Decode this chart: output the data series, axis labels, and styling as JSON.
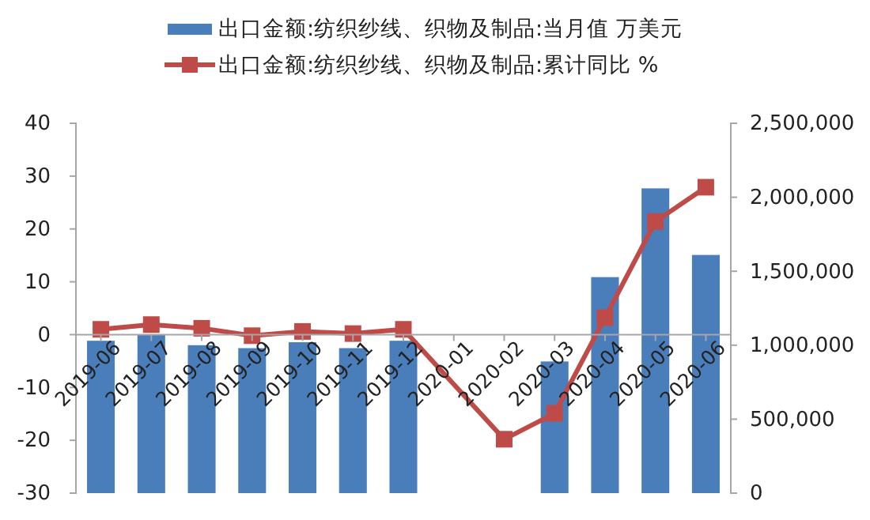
{
  "chart_data": {
    "type": "bar",
    "categories": [
      "2019-06",
      "2019-07",
      "2019-08",
      "2019-09",
      "2019-10",
      "2019-11",
      "2019-12",
      "2020-01",
      "2020-02",
      "2020-03",
      "2020-04",
      "2020-05",
      "2020-06"
    ],
    "series": [
      {
        "name": "出口金额:纺织纱线、织物及制品:当月值 万美元",
        "axis": "y2",
        "color": "#4a7ebb",
        "values": [
          1030000,
          1070000,
          1000000,
          980000,
          1020000,
          980000,
          1030000,
          null,
          null,
          890000,
          1460000,
          2060000,
          1610000
        ]
      },
      {
        "name": "出口金额:纺织纱线、织物及制品:累计同比 %",
        "type": "line",
        "axis": "y",
        "color": "#be4b48",
        "values": [
          1.0,
          1.9,
          1.2,
          -0.2,
          0.6,
          0.2,
          1.0,
          null,
          -19.8,
          -14.9,
          3.2,
          21.4,
          27.9
        ]
      }
    ],
    "ylim": [
      -30,
      40
    ],
    "yticks": [
      -30,
      -20,
      -10,
      0,
      10,
      20,
      30,
      40
    ],
    "y2lim": [
      0,
      2500000
    ],
    "y2ticks": [
      {
        "value": 0,
        "label": "0"
      },
      {
        "value": 500000,
        "label": "500,000"
      },
      {
        "value": 1000000,
        "label": "1,000,000"
      },
      {
        "value": 1500000,
        "label": "1,500,000"
      },
      {
        "value": 2000000,
        "label": "2,000,000"
      },
      {
        "value": 2500000,
        "label": "2,500,000"
      }
    ],
    "legend": "top",
    "marker": "square",
    "grid": false
  }
}
